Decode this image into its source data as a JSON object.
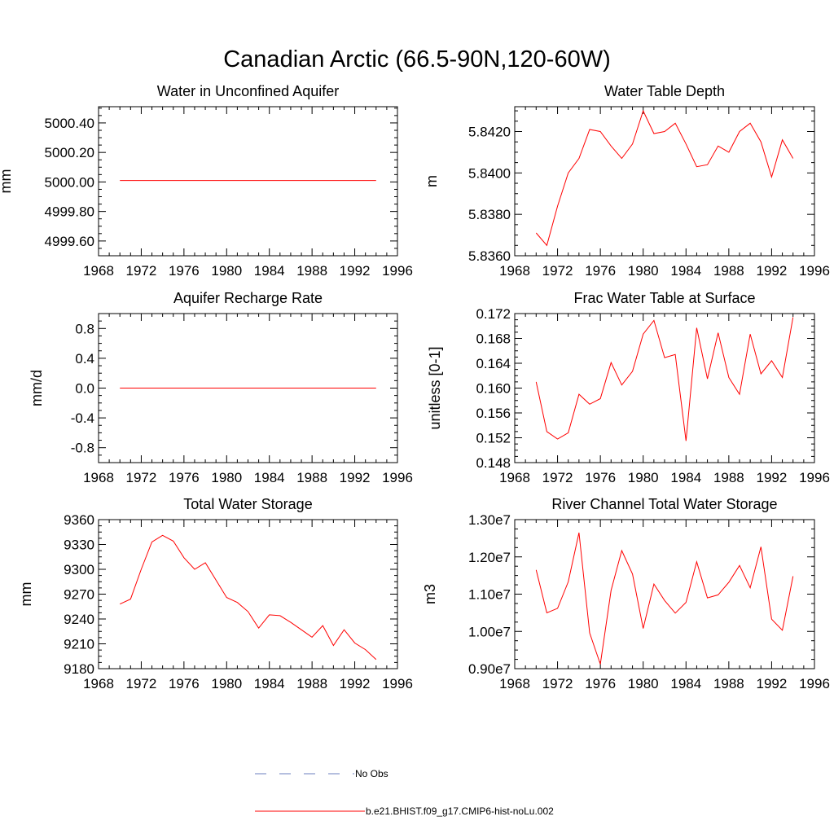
{
  "title": "Canadian Arctic (66.5-90N,120-60W)",
  "series_color": "#ff0000",
  "obs_color": "#6b7fbf",
  "legend": {
    "obs_label": "No Obs",
    "model_label": "b.e21.BHIST.f09_g17.CMIP6-hist-noLu.002"
  },
  "chart_data": [
    {
      "type": "line",
      "title": "Water in Unconfined Aquifer",
      "ylabel": "mm",
      "xlim": [
        1968,
        1996
      ],
      "ylim": [
        4999.5,
        5000.51
      ],
      "xticks": [
        1968,
        1972,
        1976,
        1980,
        1984,
        1988,
        1992,
        1996
      ],
      "xtick_labels": [
        "1968",
        "1972",
        "1976",
        "1980",
        "1984",
        "1988",
        "1992",
        "1996"
      ],
      "yticks": [
        4999.6,
        4999.8,
        5000.0,
        5000.2,
        5000.4
      ],
      "ytick_labels": [
        "4999.60",
        "4999.80",
        "5000.00",
        "5000.20",
        "5000.40"
      ],
      "x": [
        1970,
        1971,
        1972,
        1973,
        1974,
        1975,
        1976,
        1977,
        1978,
        1979,
        1980,
        1981,
        1982,
        1983,
        1984,
        1985,
        1986,
        1987,
        1988,
        1989,
        1990,
        1991,
        1992,
        1993,
        1994
      ],
      "y": [
        5000.01,
        5000.01,
        5000.01,
        5000.01,
        5000.01,
        5000.01,
        5000.01,
        5000.01,
        5000.01,
        5000.01,
        5000.01,
        5000.01,
        5000.01,
        5000.01,
        5000.01,
        5000.01,
        5000.01,
        5000.01,
        5000.01,
        5000.01,
        5000.01,
        5000.01,
        5000.01,
        5000.01,
        5000.01
      ]
    },
    {
      "type": "line",
      "title": "Water Table Depth",
      "ylabel": "m",
      "xlim": [
        1968,
        1996
      ],
      "ylim": [
        5.836,
        5.8432
      ],
      "xticks": [
        1968,
        1972,
        1976,
        1980,
        1984,
        1988,
        1992,
        1996
      ],
      "xtick_labels": [
        "1968",
        "1972",
        "1976",
        "1980",
        "1984",
        "1988",
        "1992",
        "1996"
      ],
      "yticks": [
        5.836,
        5.838,
        5.84,
        5.842
      ],
      "ytick_labels": [
        "5.8360",
        "5.8380",
        "5.8400",
        "5.8420"
      ],
      "x": [
        1970,
        1971,
        1972,
        1973,
        1974,
        1975,
        1976,
        1977,
        1978,
        1979,
        1980,
        1981,
        1982,
        1983,
        1984,
        1985,
        1986,
        1987,
        1988,
        1989,
        1990,
        1991,
        1992,
        1993,
        1994
      ],
      "y": [
        5.8371,
        5.8365,
        5.8384,
        5.84,
        5.8407,
        5.8421,
        5.842,
        5.8413,
        5.8407,
        5.8414,
        5.843,
        5.8419,
        5.842,
        5.8424,
        5.8414,
        5.8403,
        5.8404,
        5.8413,
        5.841,
        5.842,
        5.8424,
        5.8415,
        5.8398,
        5.8416,
        5.8407
      ]
    },
    {
      "type": "line",
      "title": "Aquifer Recharge Rate",
      "ylabel": "mm/d",
      "xlim": [
        1968,
        1996
      ],
      "ylim": [
        -1.0,
        1.0
      ],
      "xticks": [
        1968,
        1972,
        1976,
        1980,
        1984,
        1988,
        1992,
        1996
      ],
      "xtick_labels": [
        "1968",
        "1972",
        "1976",
        "1980",
        "1984",
        "1988",
        "1992",
        "1996"
      ],
      "yticks": [
        -0.8,
        -0.4,
        0.0,
        0.4,
        0.8
      ],
      "ytick_labels": [
        "-0.8",
        "-0.4",
        "0.0",
        "0.4",
        "0.8"
      ],
      "x": [
        1970,
        1971,
        1972,
        1973,
        1974,
        1975,
        1976,
        1977,
        1978,
        1979,
        1980,
        1981,
        1982,
        1983,
        1984,
        1985,
        1986,
        1987,
        1988,
        1989,
        1990,
        1991,
        1992,
        1993,
        1994
      ],
      "y": [
        0,
        0,
        0,
        0,
        0,
        0,
        0,
        0,
        0,
        0,
        0,
        0,
        0,
        0,
        0,
        0,
        0,
        0,
        0,
        0,
        0,
        0,
        0,
        0,
        0
      ]
    },
    {
      "type": "line",
      "title": "Frac Water Table at Surface",
      "ylabel": "unitless [0-1]",
      "xlim": [
        1968,
        1996
      ],
      "ylim": [
        0.148,
        0.172
      ],
      "xticks": [
        1968,
        1972,
        1976,
        1980,
        1984,
        1988,
        1992,
        1996
      ],
      "xtick_labels": [
        "1968",
        "1972",
        "1976",
        "1980",
        "1984",
        "1988",
        "1992",
        "1996"
      ],
      "yticks": [
        0.148,
        0.152,
        0.156,
        0.16,
        0.164,
        0.168,
        0.172
      ],
      "ytick_labels": [
        "0.148",
        "0.152",
        "0.156",
        "0.160",
        "0.164",
        "0.168",
        "0.172"
      ],
      "x": [
        1970,
        1971,
        1972,
        1973,
        1974,
        1975,
        1976,
        1977,
        1978,
        1979,
        1980,
        1981,
        1982,
        1983,
        1984,
        1985,
        1986,
        1987,
        1988,
        1989,
        1990,
        1991,
        1992,
        1993,
        1994
      ],
      "y": [
        0.161,
        0.153,
        0.1518,
        0.1528,
        0.159,
        0.1574,
        0.1583,
        0.1641,
        0.1605,
        0.1627,
        0.1687,
        0.1709,
        0.1649,
        0.1654,
        0.1515,
        0.1697,
        0.1615,
        0.1689,
        0.1617,
        0.159,
        0.1687,
        0.1623,
        0.1644,
        0.1617,
        0.1714
      ]
    },
    {
      "type": "line",
      "title": "Total Water Storage",
      "ylabel": "mm",
      "xlim": [
        1968,
        1996
      ],
      "ylim": [
        9180,
        9360
      ],
      "xticks": [
        1968,
        1972,
        1976,
        1980,
        1984,
        1988,
        1992,
        1996
      ],
      "xtick_labels": [
        "1968",
        "1972",
        "1976",
        "1980",
        "1984",
        "1988",
        "1992",
        "1996"
      ],
      "yticks": [
        9180,
        9210,
        9240,
        9270,
        9300,
        9330,
        9360
      ],
      "ytick_labels": [
        "9180",
        "9210",
        "9240",
        "9270",
        "9300",
        "9330",
        "9360"
      ],
      "x": [
        1970,
        1971,
        1972,
        1973,
        1974,
        1975,
        1976,
        1977,
        1978,
        1979,
        1980,
        1981,
        1982,
        1983,
        1984,
        1985,
        1986,
        1987,
        1988,
        1989,
        1990,
        1991,
        1992,
        1993,
        1994
      ],
      "y": [
        9258,
        9264,
        9300,
        9333,
        9341,
        9334,
        9314,
        9300,
        9308,
        9287,
        9266,
        9260,
        9249,
        9229,
        9245,
        9244,
        9236,
        9227,
        9218,
        9232,
        9208,
        9227,
        9211,
        9203,
        9191
      ]
    },
    {
      "type": "line",
      "title": "River Channel Total Water Storage",
      "ylabel": "m3",
      "xlim": [
        1968,
        1996
      ],
      "ylim": [
        9000000,
        13000000
      ],
      "xticks": [
        1968,
        1972,
        1976,
        1980,
        1984,
        1988,
        1992,
        1996
      ],
      "xtick_labels": [
        "1968",
        "1972",
        "1976",
        "1980",
        "1984",
        "1988",
        "1992",
        "1996"
      ],
      "yticks": [
        9000000,
        10000000,
        11000000,
        12000000,
        13000000
      ],
      "ytick_labels": [
        "0.90e7",
        "1.00e7",
        "1.10e7",
        "1.20e7",
        "1.30e7"
      ],
      "x": [
        1970,
        1971,
        1972,
        1973,
        1974,
        1975,
        1976,
        1977,
        1978,
        1979,
        1980,
        1981,
        1982,
        1983,
        1984,
        1985,
        1986,
        1987,
        1988,
        1989,
        1990,
        1991,
        1992,
        1993,
        1994
      ],
      "y": [
        11650000,
        10500000,
        10620000,
        11330000,
        12650000,
        9960000,
        9120000,
        11100000,
        12170000,
        11540000,
        10080000,
        11270000,
        10830000,
        10490000,
        10780000,
        11870000,
        10900000,
        10980000,
        11320000,
        11770000,
        11170000,
        12270000,
        10330000,
        10030000,
        11480000
      ]
    }
  ]
}
